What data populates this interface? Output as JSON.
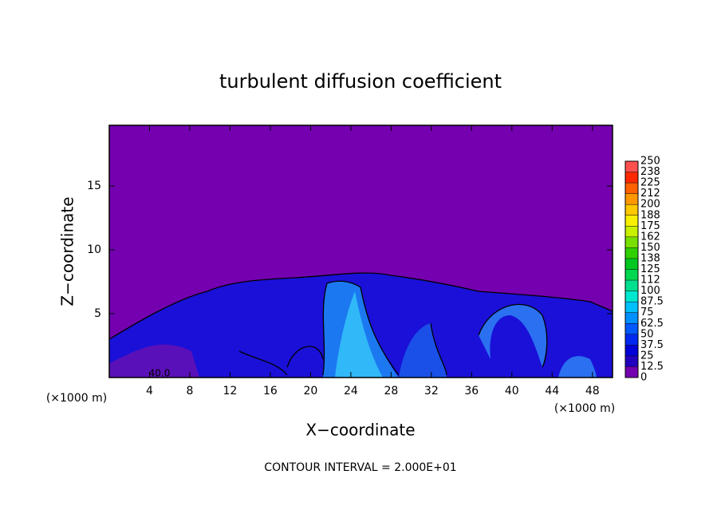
{
  "chart_data": {
    "type": "contour",
    "title": "turbulent diffusion coefficient",
    "x_label": "X−coordinate",
    "y_label": "Z−coordinate",
    "x_unit": "(×1000 m)",
    "x_unit_right": "(×1000 m)",
    "footnote": "CONTOUR INTERVAL = 2.000E+01",
    "contour_label": "40.0",
    "xlim": [
      0,
      50
    ],
    "xticks": [
      4,
      8,
      12,
      16,
      20,
      24,
      28,
      32,
      36,
      40,
      44,
      48
    ],
    "ylim": [
      0,
      19.75
    ],
    "yticks": [
      5,
      10,
      15
    ],
    "colorbar": {
      "lim": [
        0,
        250
      ],
      "ticks": [
        0,
        12.5,
        25,
        37.5,
        50,
        62.5,
        75,
        87.5,
        {
          "value": 100,
          "label": "100"
        },
        {
          "value": 112.5,
          "label": "112"
        },
        125,
        {
          "value": 137.5,
          "label": "138"
        },
        150,
        {
          "value": 162.5,
          "label": "162"
        },
        175,
        {
          "value": 187.5,
          "label": "188"
        },
        200,
        {
          "value": 212.5,
          "label": "212"
        },
        225,
        {
          "value": 237.5,
          "label": "238"
        },
        250
      ],
      "colors": [
        "#7400b0",
        "#2200c0",
        "#0000d8",
        "#0028f0",
        "#0058ff",
        "#0090ff",
        "#00c0ff",
        "#00e8d0",
        "#00e090",
        "#00d850",
        "#00c820",
        "#30d000",
        "#78e000",
        "#c8f000",
        "#f8f000",
        "#ffc800",
        "#ff9800",
        "#ff6000",
        "#ff2800",
        "#ff5050"
      ]
    }
  }
}
